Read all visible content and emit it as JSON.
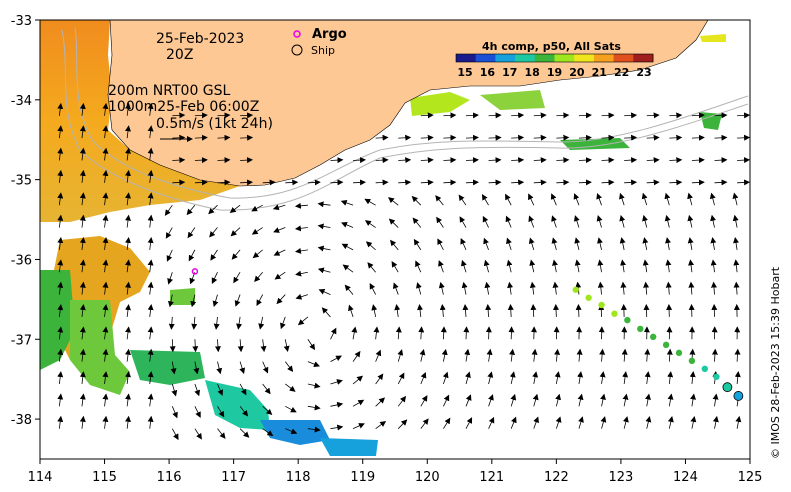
{
  "map": {
    "date_label": "25-Feb-2023",
    "time_label": "20Z",
    "current_label_line1": "200m  NRT00 GSL",
    "current_label_line2": "1000m25-Feb 06:00Z",
    "scale_label": "0.5m/s (1kt 24h)",
    "credit": "© IMOS 28-Feb-2023 15:39 Hobart",
    "x_ticks": [
      "114",
      "115",
      "116",
      "117",
      "118",
      "119",
      "120",
      "121",
      "122",
      "123",
      "124",
      "125"
    ],
    "y_ticks": [
      "-33",
      "-34",
      "-35",
      "-36",
      "-37",
      "-38"
    ],
    "land_color": "#fdc894",
    "ocean_color": "#ffffff"
  },
  "legend": {
    "argo_label": "Argo",
    "argo_color": "#e600e6",
    "ship_label": "Ship"
  },
  "colorbar": {
    "title": "4h comp, p50, All Sats",
    "ticks": [
      "15",
      "16",
      "17",
      "18",
      "19",
      "20",
      "21",
      "22",
      "23"
    ],
    "colors": [
      "#1a1a8c",
      "#1a4fd6",
      "#16a0dc",
      "#1ec8a0",
      "#3cb43c",
      "#a0e61e",
      "#f0e61e",
      "#f5a01e",
      "#e0501e",
      "#a01e1e"
    ]
  },
  "argo_float": {
    "lon": 116.4,
    "lat": -36.15
  },
  "ship_track": [
    {
      "lon": 122.3,
      "lat": -36.38,
      "temp": 20
    },
    {
      "lon": 122.5,
      "lat": -36.48,
      "temp": 20
    },
    {
      "lon": 122.7,
      "lat": -36.57,
      "temp": 20
    },
    {
      "lon": 122.9,
      "lat": -36.68,
      "temp": 20
    },
    {
      "lon": 123.1,
      "lat": -36.76,
      "temp": 19
    },
    {
      "lon": 123.3,
      "lat": -36.87,
      "temp": 19
    },
    {
      "lon": 123.5,
      "lat": -36.97,
      "temp": 19
    },
    {
      "lon": 123.7,
      "lat": -37.07,
      "temp": 19
    },
    {
      "lon": 123.9,
      "lat": -37.17,
      "temp": 19
    },
    {
      "lon": 124.1,
      "lat": -37.27,
      "temp": 19
    },
    {
      "lon": 124.3,
      "lat": -37.37,
      "temp": 18
    },
    {
      "lon": 124.48,
      "lat": -37.47,
      "temp": 18
    },
    {
      "lon": 124.65,
      "lat": -37.6,
      "temp": 18
    },
    {
      "lon": 124.82,
      "lat": -37.71,
      "temp": 17
    }
  ]
}
